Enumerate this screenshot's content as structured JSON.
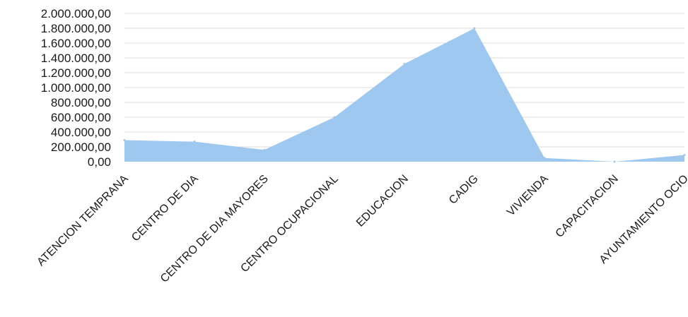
{
  "chart_data": {
    "type": "area",
    "categories": [
      "ATENCION TEMPRANA",
      "CENTRO DE DIA",
      "CENTRO  DE DIA MAYORES",
      "CENTRO OCUPACIONAL",
      "EDUCACION",
      "CADIG",
      "VIVIENDA",
      "CAPACITACION",
      "AYUNTAMIENTO OCIO"
    ],
    "series": [
      {
        "values": [
          290000,
          270000,
          160000,
          600000,
          1320000,
          1800000,
          50000,
          0,
          90000
        ]
      }
    ],
    "y_ticks": [
      "0,00",
      "200.000,00",
      "400.000,00",
      "600.000,00",
      "800.000,00",
      "1.000.000,00",
      "1.200.000,00",
      "1.400.000,00",
      "1.600.000,00",
      "1.800.000,00",
      "2.000.000,00"
    ],
    "ylim": [
      0,
      2000000
    ],
    "grid": true,
    "colors": {
      "area": "#9ec8f0",
      "grid": "#dcdcdc"
    }
  }
}
